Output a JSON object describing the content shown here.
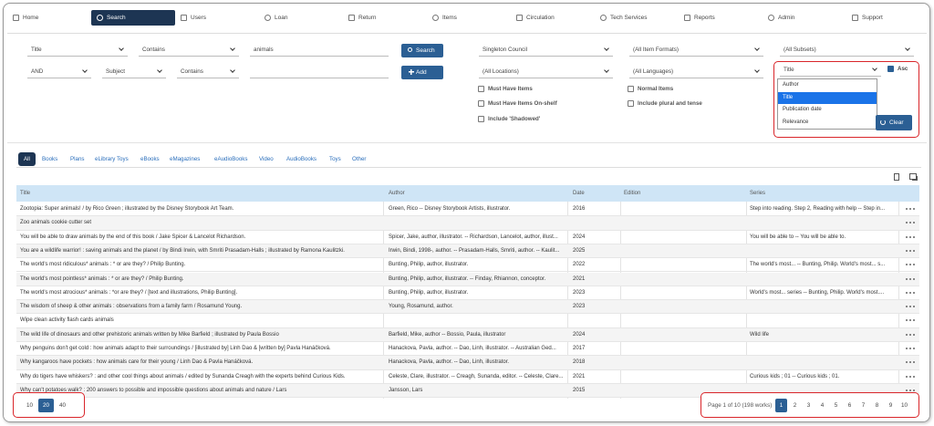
{
  "nav": [
    "Home",
    "Search",
    "Users",
    "Loan",
    "Return",
    "Items",
    "Circulation",
    "Tech Services",
    "Reports",
    "Admin",
    "Support"
  ],
  "nav_active": 1,
  "search": {
    "rows": [
      {
        "field": "Title",
        "op": "Contains",
        "term": "animals"
      },
      {
        "join": "AND",
        "field": "Subject",
        "op": "Contains"
      }
    ],
    "search_button": "Search",
    "add_button": "Add"
  },
  "filters": {
    "council": "Singleton Council",
    "formats": "(All Item Formats)",
    "subsets": "(All Subsets)",
    "locations": "(All Locations)",
    "languages": "(All Languages)"
  },
  "checkboxes": [
    {
      "label": "Must Have Items",
      "checked": false
    },
    {
      "label": "Must Have Items On-shelf",
      "checked": false
    },
    {
      "label": "Include 'Shadowed'",
      "checked": false
    },
    {
      "label": "Normal Items",
      "checked": false
    },
    {
      "label": "Include plural and tense",
      "checked": false
    }
  ],
  "sort": {
    "selected": "Title",
    "options": [
      "Author",
      "Title",
      "Publication date",
      "Relevance"
    ],
    "highlighted": 1,
    "asc_label": "Asc",
    "asc_checked": true,
    "clear": "Clear"
  },
  "tabs": [
    "All",
    "Books",
    "Plans",
    "eLibrary Toys",
    "eBooks",
    "eMagazines",
    "eAudioBooks",
    "Video",
    "AudioBooks",
    "Toys",
    "Other"
  ],
  "tabs_active": 0,
  "table": {
    "columns": [
      "Title",
      "Author",
      "Date",
      "Edition",
      "Series"
    ],
    "rows": [
      [
        "Zootopia: Super animals! / by Rico Green ; illustrated by the Disney Storybook Art Team.",
        "Green, Rico -- Disney Storybook Artists, illustrator.",
        2016,
        null,
        "Step into reading. Step 2, Reading with help -- Step in..."
      ],
      [
        "Zoo animals cookie cutter set",
        null,
        null,
        null,
        null
      ],
      [
        "You will be able to draw animals by the end of this book / Jake Spicer & Lancelot Richardson.",
        "Spicer, Jake, author, illustrator. -- Richardson, Lancelot, author, illust...",
        2024,
        null,
        "You will be able to -- You will be able to."
      ],
      [
        "You are a wildlife warrior! : saving animals and the planet / by Bindi Irwin, with Smriti Prasadam-Halls ; illustrated by Ramona Kaulitzki.",
        "Irwin, Bindi, 1998-, author. -- Prasadam-Halls, Smriti, author. -- Kaulit...",
        2025,
        null,
        null
      ],
      [
        "The world's most ridiculous* animals : * or are they? / Philip Bunting.",
        "Bunting, Philip, author, illustrator.",
        2022,
        null,
        "The world's most... -- Bunting, Philip. World's most... s..."
      ],
      [
        "The world's most pointless* animals : * or are they? / Philip Bunting.",
        "Bunting, Philip, author, illustrator. -- Finday, Rhiannon, conceptor.",
        2021,
        null,
        null
      ],
      [
        "The world's most atrocious* animals : *or are they? / [text and illustrations, Philip Bunting].",
        "Bunting, Philip, author, illustrator.",
        2023,
        null,
        "World's most... series -- Bunting, Philip. World's most...."
      ],
      [
        "The wisdom of sheep & other animals : observations from a family farm / Rosamund Young.",
        "Young, Rosamund, author.",
        2023,
        null,
        null
      ],
      [
        "Wipe clean activity flash cards animals",
        null,
        null,
        null,
        null
      ],
      [
        "The wild life of dinosaurs and other prehistoric animals written by Mike Barfield ; illustrated by Paula Bossio",
        "Barfield, Mike, author -- Bossio, Paula, illustrator",
        2024,
        null,
        "Wild life"
      ],
      [
        "Why penguins don't get cold : how animals adapt to their surroundings / [illustrated by] Linh Dao & [written by] Pavla Hanáčková.",
        "Hanackova, Pavla, author. -- Dao, Linh, illustrator. -- Australian Ged...",
        2017,
        null,
        null
      ],
      [
        "Why kangaroos have pockets : how animals care for their young / Linh Dao & Pavla Hanáčková.",
        "Hanackova, Pavla, author. -- Dao, Linh, illustrator.",
        2018,
        null,
        null
      ],
      [
        "Why do tigers have whiskers? : and other cool things about animals / edited by Sunanda Creagh with the experts behind Curious Kids.",
        "Celeste, Clare, illustrator. -- Creagh, Sunanda, editor. -- Celeste, Clare...",
        2021,
        null,
        "Curious kids ; 01 -- Curious kids ; 01."
      ],
      [
        "Why can't potatoes walk? : 200 answers to possible and impossible questions about animals and nature / Lars",
        "Jansson, Lars",
        2015,
        null,
        null
      ]
    ]
  },
  "page_sizes": [
    10,
    20,
    40
  ],
  "page_size_active": 1,
  "pagination": {
    "summary": "Page 1 of 10 (198 works)",
    "pages": [
      1,
      2,
      3,
      4,
      5,
      6,
      7,
      8,
      9,
      10
    ],
    "current": 0
  }
}
